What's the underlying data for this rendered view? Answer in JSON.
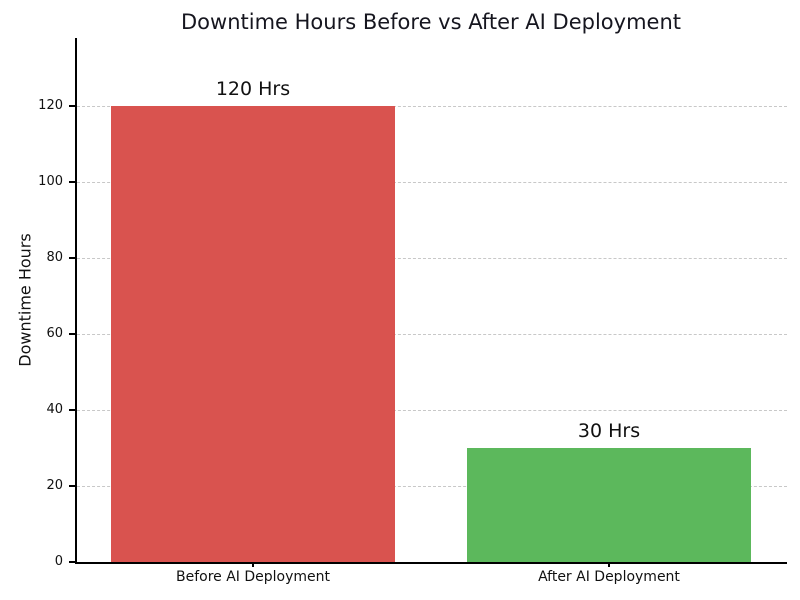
{
  "chart_data": {
    "type": "bar",
    "title": "Downtime Hours Before vs After AI Deployment",
    "categories": [
      "Before AI Deployment",
      "After AI Deployment"
    ],
    "values": [
      120,
      30
    ],
    "bar_labels": [
      "120 Hrs",
      "30 Hrs"
    ],
    "bar_colors": [
      "#d9534f",
      "#5cb85c"
    ],
    "xlabel": "",
    "ylabel": "Downtime Hours",
    "ylim": [
      0,
      138
    ],
    "yticks": [
      0,
      20,
      40,
      60,
      80,
      100,
      120
    ],
    "bar_width_fraction": 0.8,
    "grid": "horizontal-dashed",
    "legend": "none"
  },
  "colors": {
    "background": "#ffffff",
    "grid": "#c8c8c8",
    "axis": "#000000",
    "text": "#111111",
    "title": "#16161f"
  }
}
